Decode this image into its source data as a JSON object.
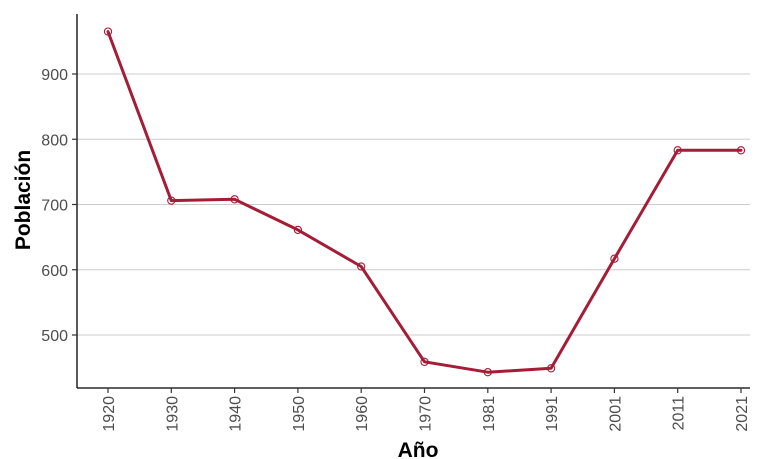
{
  "chart_data": {
    "type": "line",
    "title": "",
    "xlabel": "Año",
    "ylabel": "Población",
    "categories": [
      "1920",
      "1930",
      "1940",
      "1950",
      "1960",
      "1970",
      "1981",
      "1991",
      "2001",
      "2011",
      "2021"
    ],
    "series": [
      {
        "values": [
          965,
          706,
          708,
          661,
          605,
          459,
          443,
          449,
          617,
          783,
          783
        ]
      }
    ],
    "y_ticks": [
      500,
      600,
      700,
      800,
      900
    ],
    "ylim": [
      420,
      985
    ],
    "grid": "horizontal",
    "line_color": "#A51C36",
    "marker": "open-circle"
  }
}
